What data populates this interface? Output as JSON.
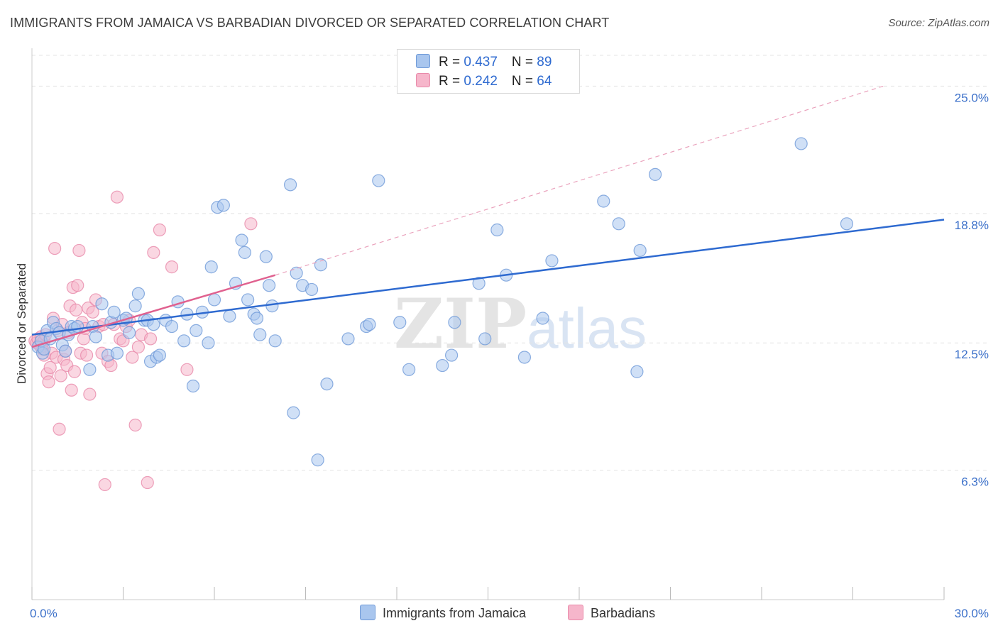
{
  "title": "IMMIGRANTS FROM JAMAICA VS BARBADIAN DIVORCED OR SEPARATED CORRELATION CHART",
  "source": "Source: ZipAtlas.com",
  "watermark": {
    "zip": "ZIP",
    "atlas": "atlas"
  },
  "legend": {
    "series1": {
      "r_label": "R = ",
      "r_value": "0.437",
      "n_label": "N = ",
      "n_value": "89"
    },
    "series2": {
      "r_label": "R = ",
      "r_value": "0.242",
      "n_label": "N = ",
      "n_value": "64"
    }
  },
  "colors": {
    "blue_fill": "#a9c6ee",
    "blue_stroke": "#6f9ad8",
    "blue_line": "#2e6ad0",
    "pink_fill": "#f6b6cb",
    "pink_stroke": "#e98aaa",
    "pink_line": "#e0618f",
    "grid": "#e3e3e3"
  },
  "chart_data": {
    "type": "scatter",
    "title": "IMMIGRANTS FROM JAMAICA VS BARBADIAN DIVORCED OR SEPARATED CORRELATION CHART",
    "xlabel": "",
    "ylabel": "Divorced or Separated",
    "xlim": [
      0,
      30
    ],
    "ylim": [
      0,
      26.5
    ],
    "x_tick_labels": [
      {
        "value": 0,
        "label": "0.0%"
      },
      {
        "value": 30,
        "label": "30.0%"
      }
    ],
    "y_tick_labels": [
      {
        "value": 6.3,
        "label": "6.3%"
      },
      {
        "value": 12.5,
        "label": "12.5%"
      },
      {
        "value": 18.8,
        "label": "18.8%"
      },
      {
        "value": 25.0,
        "label": "25.0%"
      }
    ],
    "grid": true,
    "legend_position": "top-center",
    "series": [
      {
        "name": "Immigrants from Jamaica",
        "r": 0.437,
        "n": 89,
        "trend": {
          "x": [
            0,
            30
          ],
          "y": [
            12.9,
            18.5
          ]
        },
        "points": [
          [
            0.2,
            12.3
          ],
          [
            0.3,
            12.6
          ],
          [
            0.35,
            12.0
          ],
          [
            0.4,
            12.2
          ],
          [
            0.5,
            13.1
          ],
          [
            0.6,
            12.7
          ],
          [
            0.7,
            13.5
          ],
          [
            0.8,
            13.2
          ],
          [
            0.9,
            13.0
          ],
          [
            1.0,
            12.4
          ],
          [
            1.1,
            12.1
          ],
          [
            1.2,
            12.9
          ],
          [
            1.3,
            13.3
          ],
          [
            1.4,
            13.2
          ],
          [
            1.5,
            13.3
          ],
          [
            1.9,
            11.2
          ],
          [
            2.0,
            13.3
          ],
          [
            2.1,
            12.8
          ],
          [
            2.3,
            14.4
          ],
          [
            2.5,
            11.9
          ],
          [
            2.6,
            13.5
          ],
          [
            2.7,
            14.0
          ],
          [
            2.8,
            12.0
          ],
          [
            3.0,
            13.6
          ],
          [
            3.1,
            13.7
          ],
          [
            3.2,
            13.0
          ],
          [
            3.4,
            14.3
          ],
          [
            3.5,
            14.9
          ],
          [
            3.7,
            13.6
          ],
          [
            3.8,
            13.6
          ],
          [
            3.9,
            11.6
          ],
          [
            4.0,
            13.4
          ],
          [
            4.1,
            11.8
          ],
          [
            4.2,
            11.9
          ],
          [
            4.4,
            13.6
          ],
          [
            4.6,
            13.3
          ],
          [
            4.8,
            14.5
          ],
          [
            5.0,
            12.6
          ],
          [
            5.1,
            13.9
          ],
          [
            5.3,
            10.4
          ],
          [
            5.4,
            13.1
          ],
          [
            5.6,
            14.0
          ],
          [
            5.8,
            12.5
          ],
          [
            5.9,
            16.2
          ],
          [
            6.0,
            14.6
          ],
          [
            6.1,
            19.1
          ],
          [
            6.3,
            19.2
          ],
          [
            6.5,
            13.8
          ],
          [
            6.7,
            15.4
          ],
          [
            6.9,
            17.5
          ],
          [
            7.0,
            16.9
          ],
          [
            7.1,
            14.6
          ],
          [
            7.3,
            13.9
          ],
          [
            7.4,
            13.7
          ],
          [
            7.5,
            12.9
          ],
          [
            7.7,
            16.7
          ],
          [
            7.8,
            15.3
          ],
          [
            7.9,
            14.3
          ],
          [
            8.0,
            12.6
          ],
          [
            8.5,
            20.2
          ],
          [
            8.6,
            9.1
          ],
          [
            8.7,
            15.9
          ],
          [
            8.9,
            15.3
          ],
          [
            9.2,
            15.1
          ],
          [
            9.4,
            6.8
          ],
          [
            9.5,
            16.3
          ],
          [
            9.7,
            10.5
          ],
          [
            10.4,
            12.7
          ],
          [
            11.0,
            13.3
          ],
          [
            11.1,
            13.4
          ],
          [
            11.4,
            20.4
          ],
          [
            12.1,
            13.5
          ],
          [
            12.4,
            11.2
          ],
          [
            13.5,
            11.4
          ],
          [
            13.8,
            11.9
          ],
          [
            13.9,
            13.5
          ],
          [
            14.7,
            15.4
          ],
          [
            14.9,
            12.7
          ],
          [
            15.3,
            18.0
          ],
          [
            15.6,
            15.8
          ],
          [
            16.2,
            11.8
          ],
          [
            16.8,
            13.7
          ],
          [
            17.1,
            16.5
          ],
          [
            18.8,
            19.4
          ],
          [
            19.3,
            18.3
          ],
          [
            19.9,
            11.1
          ],
          [
            20.0,
            17.0
          ],
          [
            20.5,
            20.7
          ],
          [
            25.3,
            22.2
          ],
          [
            26.8,
            18.3
          ]
        ]
      },
      {
        "name": "Barbadians",
        "r": 0.242,
        "n": 64,
        "trend": {
          "x": [
            0,
            8
          ],
          "y": [
            12.3,
            15.8
          ]
        },
        "trend_extension": {
          "x": [
            8,
            28
          ],
          "y": [
            15.8,
            25.0
          ]
        },
        "points": [
          [
            0.1,
            12.6
          ],
          [
            0.15,
            12.5
          ],
          [
            0.2,
            12.7
          ],
          [
            0.25,
            12.4
          ],
          [
            0.3,
            12.8
          ],
          [
            0.35,
            12.2
          ],
          [
            0.4,
            12.6
          ],
          [
            0.45,
            12.9
          ],
          [
            0.5,
            11.0
          ],
          [
            0.55,
            10.6
          ],
          [
            0.6,
            11.3
          ],
          [
            0.65,
            12.0
          ],
          [
            0.7,
            13.7
          ],
          [
            0.75,
            17.1
          ],
          [
            0.8,
            11.8
          ],
          [
            0.85,
            13.1
          ],
          [
            0.9,
            8.3
          ],
          [
            0.95,
            10.9
          ],
          [
            1.0,
            13.4
          ],
          [
            1.05,
            11.7
          ],
          [
            1.1,
            12.1
          ],
          [
            1.15,
            11.4
          ],
          [
            1.2,
            13.0
          ],
          [
            1.25,
            14.3
          ],
          [
            1.3,
            10.2
          ],
          [
            1.35,
            15.2
          ],
          [
            1.4,
            11.1
          ],
          [
            1.45,
            14.1
          ],
          [
            1.5,
            15.3
          ],
          [
            1.55,
            17.0
          ],
          [
            1.6,
            12.0
          ],
          [
            1.65,
            13.5
          ],
          [
            1.7,
            12.7
          ],
          [
            1.75,
            13.2
          ],
          [
            1.8,
            11.9
          ],
          [
            1.85,
            14.2
          ],
          [
            1.9,
            10.0
          ],
          [
            2.0,
            14.0
          ],
          [
            2.1,
            14.6
          ],
          [
            2.2,
            13.3
          ],
          [
            2.3,
            12.0
          ],
          [
            2.35,
            13.4
          ],
          [
            2.4,
            5.6
          ],
          [
            2.5,
            11.6
          ],
          [
            2.6,
            11.4
          ],
          [
            2.7,
            13.4
          ],
          [
            2.8,
            19.6
          ],
          [
            2.9,
            12.7
          ],
          [
            3.0,
            12.6
          ],
          [
            3.1,
            13.3
          ],
          [
            3.2,
            13.6
          ],
          [
            3.3,
            11.8
          ],
          [
            3.4,
            8.5
          ],
          [
            3.5,
            12.3
          ],
          [
            3.6,
            12.9
          ],
          [
            3.8,
            5.7
          ],
          [
            3.9,
            12.7
          ],
          [
            4.0,
            16.9
          ],
          [
            4.2,
            18.0
          ],
          [
            4.6,
            16.2
          ],
          [
            5.1,
            11.2
          ],
          [
            7.2,
            18.3
          ],
          [
            0.3,
            12.3
          ],
          [
            0.4,
            11.9
          ]
        ]
      }
    ]
  }
}
